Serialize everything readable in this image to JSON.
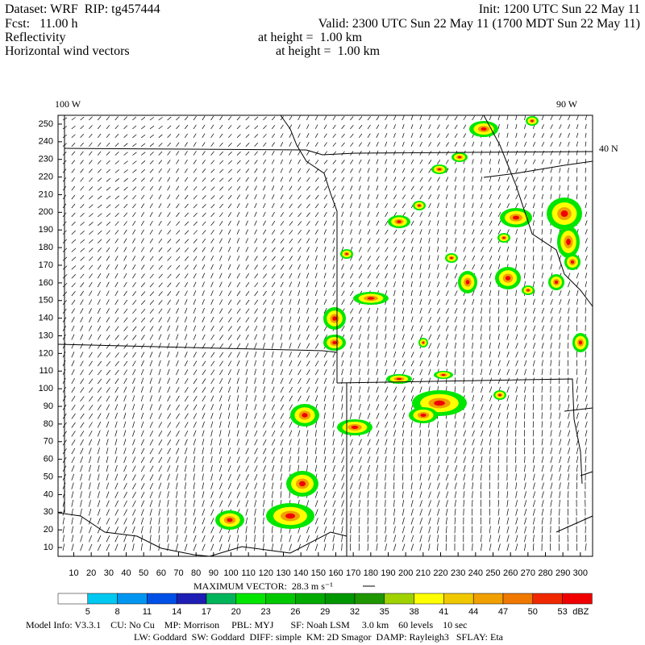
{
  "header": {
    "dataset": "Dataset: WRF  RIP: tg457444",
    "init": "Init: 1200 UTC Sun 22 May 11",
    "fcst": "Fcst:   11.00 h",
    "valid": "Valid: 2300 UTC Sun 22 May 11 (1700 MDT Sun 22 May 11)",
    "field1": "Reflectivity",
    "field1_height": "at height =  1.00 km",
    "field2": "Horizontal wind vectors",
    "field2_height": "at height =  1.00 km"
  },
  "map": {
    "lon_left": "100 W",
    "lon_right": "90 W",
    "lat_label": "40 N",
    "xlim": [
      1,
      307
    ],
    "ylim": [
      5,
      255
    ],
    "xticks": [
      10,
      20,
      30,
      40,
      50,
      60,
      70,
      80,
      90,
      100,
      110,
      120,
      130,
      140,
      150,
      160,
      170,
      180,
      190,
      200,
      210,
      220,
      230,
      240,
      250,
      260,
      270,
      280,
      290,
      300
    ],
    "yticks": [
      10,
      20,
      30,
      40,
      50,
      60,
      70,
      80,
      90,
      100,
      110,
      120,
      130,
      140,
      150,
      160,
      170,
      180,
      190,
      200,
      210,
      220,
      230,
      240,
      250
    ]
  },
  "max_vector": "MAXIMUM VECTOR:  28.3 m s⁻¹",
  "colorbar": {
    "levels": [
      5,
      8,
      11,
      14,
      17,
      20,
      23,
      26,
      29,
      32,
      35,
      38,
      41,
      44,
      47,
      50,
      53
    ],
    "colors": [
      "#ffffff",
      "#00c8f0",
      "#0096f0",
      "#0050e6",
      "#1e1eb4",
      "#00b45a",
      "#00e600",
      "#00c800",
      "#00aa00",
      "#009600",
      "#1e9600",
      "#a0d200",
      "#ffff00",
      "#f0c800",
      "#f0a000",
      "#f07800",
      "#f02800",
      "#f00000",
      "#c80000"
    ],
    "units": "dBZ"
  },
  "footer": {
    "line1": "Model Info: V3.3.1    CU: No Cu    MP: Morrison     PBL: MYJ       SF: Noah LSM     3.0 km    60 levels    10 sec",
    "line2": "LW: Goddard  SW: Goddard  DIFF: simple  KM: 2D Smagor  DAMP: Rayleigh3   SFLAY: Eta"
  }
}
